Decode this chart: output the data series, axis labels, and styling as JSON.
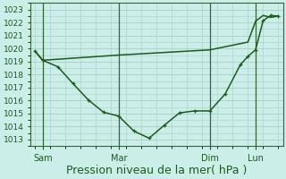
{
  "bg_color": "#cceee8",
  "grid_color": "#aaccc8",
  "line_color": "#1a5c1a",
  "marker_color": "#1a5c1a",
  "xlabel": "Pression niveau de la mer( hPa )",
  "xlabel_fontsize": 9,
  "ylim": [
    1012.5,
    1023.5
  ],
  "yticks": [
    1013,
    1014,
    1015,
    1016,
    1017,
    1018,
    1019,
    1020,
    1021,
    1022,
    1023
  ],
  "xlim": [
    -0.3,
    16.3
  ],
  "vline_positions": [
    0.5,
    5.5,
    11.5,
    14.5
  ],
  "xtick_positions": [
    0.5,
    5.5,
    11.5,
    14.5
  ],
  "xtick_labels": [
    "Sam",
    "Mar",
    "Dim",
    "Lun"
  ],
  "series1_x": [
    0,
    0.5,
    5.5,
    11.5,
    14.0,
    14.5,
    15.0,
    15.5,
    16.0
  ],
  "series1_y": [
    1019.8,
    1019.1,
    1019.5,
    1019.9,
    1020.5,
    1022.1,
    1022.55,
    1022.4,
    1022.5
  ],
  "series2_x": [
    0,
    0.5,
    1.5,
    2.5,
    3.5,
    4.5,
    5.5,
    6.5,
    7.5,
    8.5,
    9.5,
    10.5,
    11.5,
    12.5,
    13.5,
    14.0,
    14.5,
    15.0,
    15.5,
    16.0
  ],
  "series2_y": [
    1019.8,
    1019.1,
    1018.6,
    1017.3,
    1016.05,
    1015.1,
    1014.8,
    1013.65,
    1013.1,
    1014.1,
    1015.05,
    1015.2,
    1015.2,
    1016.5,
    1018.75,
    1019.4,
    1019.9,
    1022.15,
    1022.55,
    1022.5
  ]
}
